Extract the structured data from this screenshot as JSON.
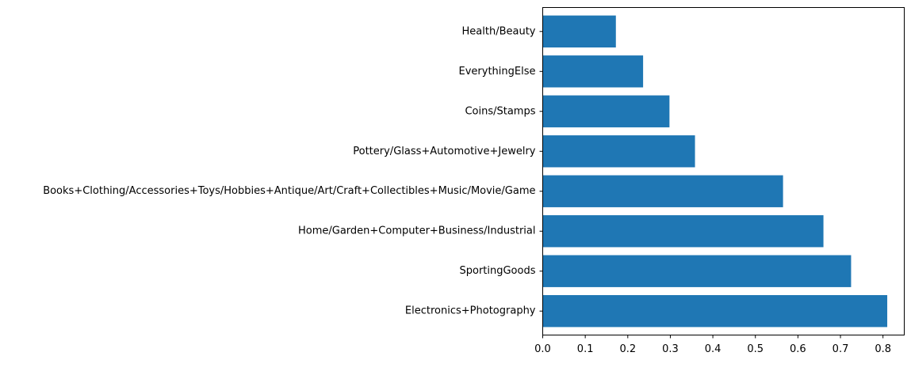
{
  "chart_data": {
    "type": "bar",
    "orientation": "horizontal",
    "categories": [
      "Health/Beauty",
      "EverythingElse",
      "Coins/Stamps",
      "Pottery/Glass+Automotive+Jewelry",
      "Books+Clothing/Accessories+Toys/Hobbies+Antique/Art/Craft+Collectibles+Music/Movie/Game",
      "Home/Garden+Computer+Business/Industrial",
      "SportingGoods",
      "Electronics+Photography"
    ],
    "values": [
      0.172,
      0.236,
      0.298,
      0.358,
      0.565,
      0.66,
      0.725,
      0.81
    ],
    "title": "",
    "xlabel": "",
    "ylabel": "",
    "xlim": [
      0.0,
      0.85
    ],
    "xticks": [
      "0.0",
      "0.1",
      "0.2",
      "0.3",
      "0.4",
      "0.5",
      "0.6",
      "0.7",
      "0.8"
    ],
    "grid": false,
    "legend": "none",
    "bar_color": "#1f77b4"
  }
}
